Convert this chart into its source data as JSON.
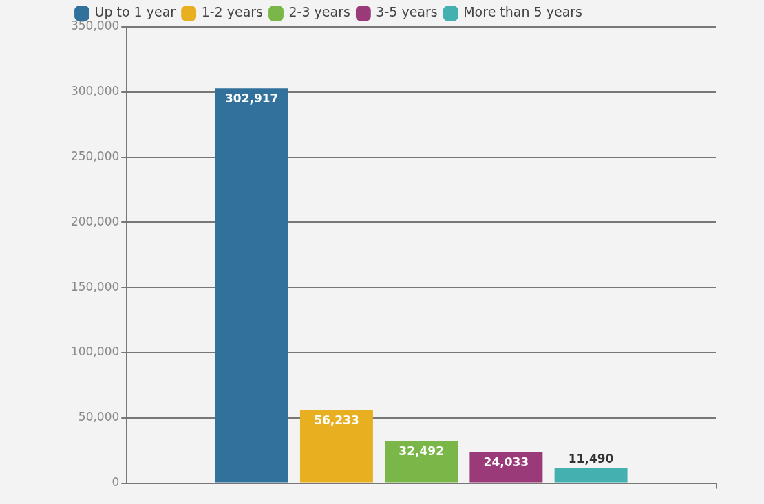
{
  "chart_data": {
    "type": "bar",
    "categories": [
      null
    ],
    "series": [
      {
        "name": "Up to 1 year",
        "color": "#31719b",
        "values": [
          302917
        ],
        "value_labels": [
          "302,917"
        ]
      },
      {
        "name": "1-2 years",
        "color": "#e8b021",
        "values": [
          56233
        ],
        "value_labels": [
          "56,233"
        ]
      },
      {
        "name": "2-3 years",
        "color": "#7ab648",
        "values": [
          32492
        ],
        "value_labels": [
          "32,492"
        ]
      },
      {
        "name": "3-5 years",
        "color": "#9b3a78",
        "values": [
          24033
        ],
        "value_labels": [
          "24,033"
        ]
      },
      {
        "name": "More than 5 years",
        "color": "#45b0b0",
        "values": [
          11490
        ],
        "value_labels": [
          "11,490"
        ]
      }
    ],
    "ylim": [
      0,
      350000
    ],
    "yticks": [
      {
        "value": 0,
        "label": "0"
      },
      {
        "value": 50000,
        "label": "50,000"
      },
      {
        "value": 100000,
        "label": "100,000"
      },
      {
        "value": 150000,
        "label": "150,000"
      },
      {
        "value": 200000,
        "label": "200,000"
      },
      {
        "value": 250000,
        "label": "250,000"
      },
      {
        "value": 300000,
        "label": "300,000"
      },
      {
        "value": 350000,
        "label": "350,000"
      }
    ],
    "grid": "y",
    "legend": "top left"
  }
}
